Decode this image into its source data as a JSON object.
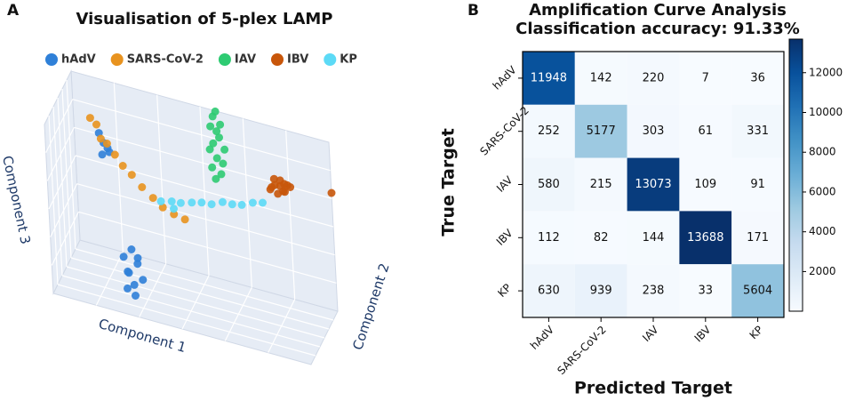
{
  "chart_data": [
    {
      "type": "scatter3d",
      "panel_label": "A",
      "title": "Visualisation of 5-plex LAMP",
      "xlabel": "Component 1",
      "ylabel": "Component 2",
      "zlabel": "Component 3",
      "xlim": [
        0,
        10
      ],
      "ylim": [
        0,
        10
      ],
      "zlim": [
        0,
        10
      ],
      "legend": "top",
      "grid": true,
      "series": [
        {
          "name": "hAdV",
          "color": "#2f80d8",
          "x": [
            2.7,
            3.0,
            3.3,
            2.8,
            3.1,
            2.6,
            3.2,
            2.9,
            3.0,
            2.8,
            1.4,
            1.6,
            1.5,
            1.3,
            1.7
          ],
          "y": [
            2.0,
            1.8,
            2.2,
            1.5,
            2.4,
            2.1,
            1.7,
            2.3,
            2.0,
            1.9,
            7.0,
            7.2,
            6.8,
            7.1,
            6.9
          ],
          "z": [
            0.8,
            1.2,
            1.5,
            2.0,
            2.3,
            2.6,
            2.9,
            3.1,
            0.5,
            1.8,
            6.6,
            7.0,
            7.4,
            7.8,
            6.9
          ]
        },
        {
          "name": "SARS-CoV-2",
          "color": "#e8931f",
          "x": [
            1.0,
            1.2,
            1.4,
            1.6,
            1.9,
            2.2,
            2.5,
            2.9,
            3.3,
            3.7,
            4.1,
            4.5
          ],
          "y": [
            7,
            7.3,
            6.8,
            7.1,
            7,
            6.9,
            7.2,
            7,
            7.1,
            6.8,
            7,
            7.2
          ],
          "z": [
            8.6,
            8.2,
            7.6,
            7.3,
            6.8,
            6.3,
            5.8,
            5.3,
            4.8,
            4.5,
            4.2,
            4.0
          ]
        },
        {
          "name": "IAV",
          "color": "#2ecb72",
          "x": [
            5.5,
            5.7,
            5.4,
            5.8,
            5.6,
            5.3,
            5.9,
            5.5,
            5.7,
            5.6,
            5.4,
            5.8,
            5.5,
            5.6
          ],
          "y": [
            9.8,
            10,
            9.6,
            9.9,
            9.7,
            10,
            9.8,
            9.5,
            9.9,
            10,
            9.7,
            9.6,
            9.8,
            9.9
          ],
          "z": [
            6.0,
            6.3,
            6.7,
            7.0,
            7.3,
            7.6,
            7.9,
            8.2,
            8.5,
            8.8,
            9.1,
            9.4,
            9.7,
            10.0
          ]
        },
        {
          "name": "IBV",
          "color": "#c8560a",
          "x": [
            7.6,
            7.8,
            8.0,
            8.2,
            8.4,
            7.7,
            7.9,
            8.1,
            8.3,
            7.8,
            8.0,
            8.2,
            10.0
          ],
          "y": [
            10,
            9.8,
            10,
            9.7,
            9.9,
            9.6,
            9.9,
            10,
            9.8,
            9.7,
            9.9,
            9.6,
            10
          ],
          "z": [
            6.2,
            6.6,
            6.9,
            6.4,
            6.7,
            6.5,
            6.1,
            6.3,
            6.8,
            7.0,
            6.6,
            6.9,
            7.0
          ]
        },
        {
          "name": "KP",
          "color": "#5cdaf6",
          "x": [
            3.5,
            3.9,
            4.3,
            4.7,
            5.1,
            5.5,
            5.9,
            6.3,
            6.7,
            7.1,
            7.5,
            4.0
          ],
          "y": [
            8,
            8.2,
            7.8,
            8.1,
            8,
            7.9,
            8.2,
            8,
            7.8,
            8.1,
            8,
            7.9
          ],
          "z": [
            4.4,
            4.5,
            4.7,
            4.8,
            5.0,
            5.1,
            5.3,
            5.4,
            5.6,
            5.8,
            6.0,
            4.2
          ]
        }
      ]
    },
    {
      "type": "heatmap",
      "panel_label": "B",
      "title": [
        "Amplification Curve Analysis",
        "Classification accuracy: 91.33%"
      ],
      "xlabel": "Predicted Target",
      "ylabel": "True Target",
      "x_categories": [
        "hAdV",
        "SARS-CoV-2",
        "IAV",
        "IBV",
        "KP"
      ],
      "y_categories": [
        "hAdV",
        "SARS-CoV-2",
        "IAV",
        "IBV",
        "KP"
      ],
      "values": [
        [
          11948,
          142,
          220,
          7,
          36
        ],
        [
          252,
          5177,
          303,
          61,
          331
        ],
        [
          580,
          215,
          13073,
          109,
          91
        ],
        [
          112,
          82,
          144,
          13688,
          171
        ],
        [
          630,
          939,
          238,
          33,
          5604
        ]
      ],
      "colormap": "Blues",
      "colorbar_lim": [
        7,
        13688
      ],
      "colorbar_ticks": [
        2000,
        4000,
        6000,
        8000,
        10000,
        12000
      ]
    }
  ]
}
